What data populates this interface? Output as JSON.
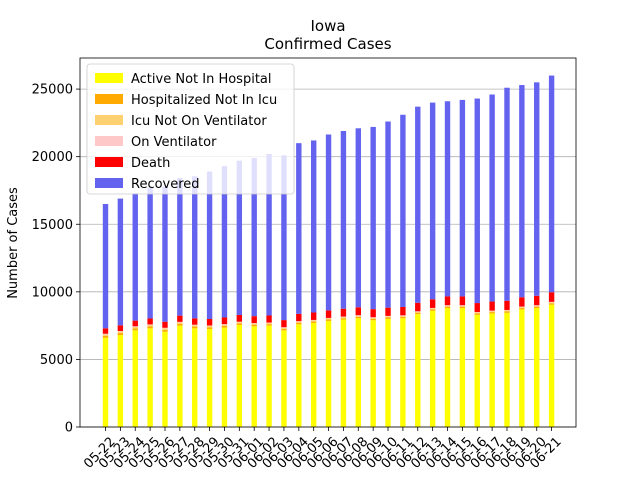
{
  "chart_data": {
    "type": "bar",
    "stacked": true,
    "title": "Iowa",
    "subtitle": "Confirmed Cases",
    "xlabel": "",
    "ylabel": "Number of Cases",
    "ylim": [
      0,
      27300
    ],
    "yticks": [
      0,
      5000,
      10000,
      15000,
      20000,
      25000
    ],
    "grid": "y",
    "legend_position": "top-left",
    "categories": [
      "05-22",
      "05-23",
      "05-24",
      "05-25",
      "05-26",
      "05-27",
      "05-28",
      "05-29",
      "05-30",
      "05-31",
      "06-01",
      "06-02",
      "06-03",
      "06-04",
      "06-05",
      "06-06",
      "06-07",
      "06-08",
      "06-09",
      "06-10",
      "06-11",
      "06-12",
      "06-13",
      "06-14",
      "06-15",
      "06-16",
      "06-17",
      "06-18",
      "06-19",
      "06-20",
      "06-21"
    ],
    "series": [
      {
        "name": "Active Not In Hospital",
        "color": "#ffff00",
        "values": [
          6600,
          6800,
          7150,
          7300,
          7050,
          7500,
          7300,
          7250,
          7350,
          7550,
          7450,
          7500,
          7150,
          7600,
          7700,
          7850,
          7950,
          8050,
          7900,
          8000,
          8050,
          8350,
          8600,
          8800,
          8800,
          8300,
          8400,
          8450,
          8700,
          8800,
          9050
        ]
      },
      {
        "name": "Hospitalized Not In Icu",
        "color": "#ffaa00",
        "values": [
          150,
          150,
          150,
          140,
          140,
          140,
          130,
          130,
          130,
          120,
          120,
          110,
          110,
          110,
          100,
          100,
          100,
          100,
          100,
          100,
          100,
          100,
          100,
          100,
          100,
          100,
          100,
          100,
          100,
          100,
          100
        ]
      },
      {
        "name": "Icu Not On Ventilator",
        "color": "#ffd070",
        "values": [
          100,
          100,
          100,
          100,
          100,
          90,
          90,
          90,
          90,
          80,
          80,
          80,
          80,
          80,
          80,
          80,
          80,
          80,
          80,
          80,
          70,
          70,
          70,
          70,
          70,
          70,
          70,
          70,
          70,
          70,
          70
        ]
      },
      {
        "name": "On Ventilator",
        "color": "#ffc8c8",
        "values": [
          50,
          50,
          50,
          50,
          50,
          50,
          50,
          40,
          40,
          40,
          40,
          40,
          40,
          40,
          40,
          40,
          40,
          40,
          40,
          40,
          40,
          40,
          40,
          40,
          40,
          40,
          40,
          40,
          40,
          40,
          40
        ]
      },
      {
        "name": "Death",
        "color": "#ff0000",
        "values": [
          400,
          420,
          420,
          440,
          450,
          460,
          470,
          480,
          490,
          500,
          510,
          520,
          530,
          540,
          550,
          560,
          580,
          590,
          600,
          610,
          620,
          630,
          640,
          650,
          650,
          660,
          670,
          680,
          690,
          700,
          710
        ]
      },
      {
        "name": "Recovered",
        "color": "#6363f0",
        "values": [
          9200,
          9380,
          9430,
          9670,
          9990,
          10180,
          10510,
          10910,
          11200,
          11410,
          11700,
          11950,
          12190,
          12630,
          12730,
          13010,
          13150,
          13240,
          13480,
          13770,
          14220,
          14510,
          14550,
          14440,
          14540,
          15130,
          15320,
          15760,
          15700,
          15790,
          16030
        ]
      }
    ]
  }
}
